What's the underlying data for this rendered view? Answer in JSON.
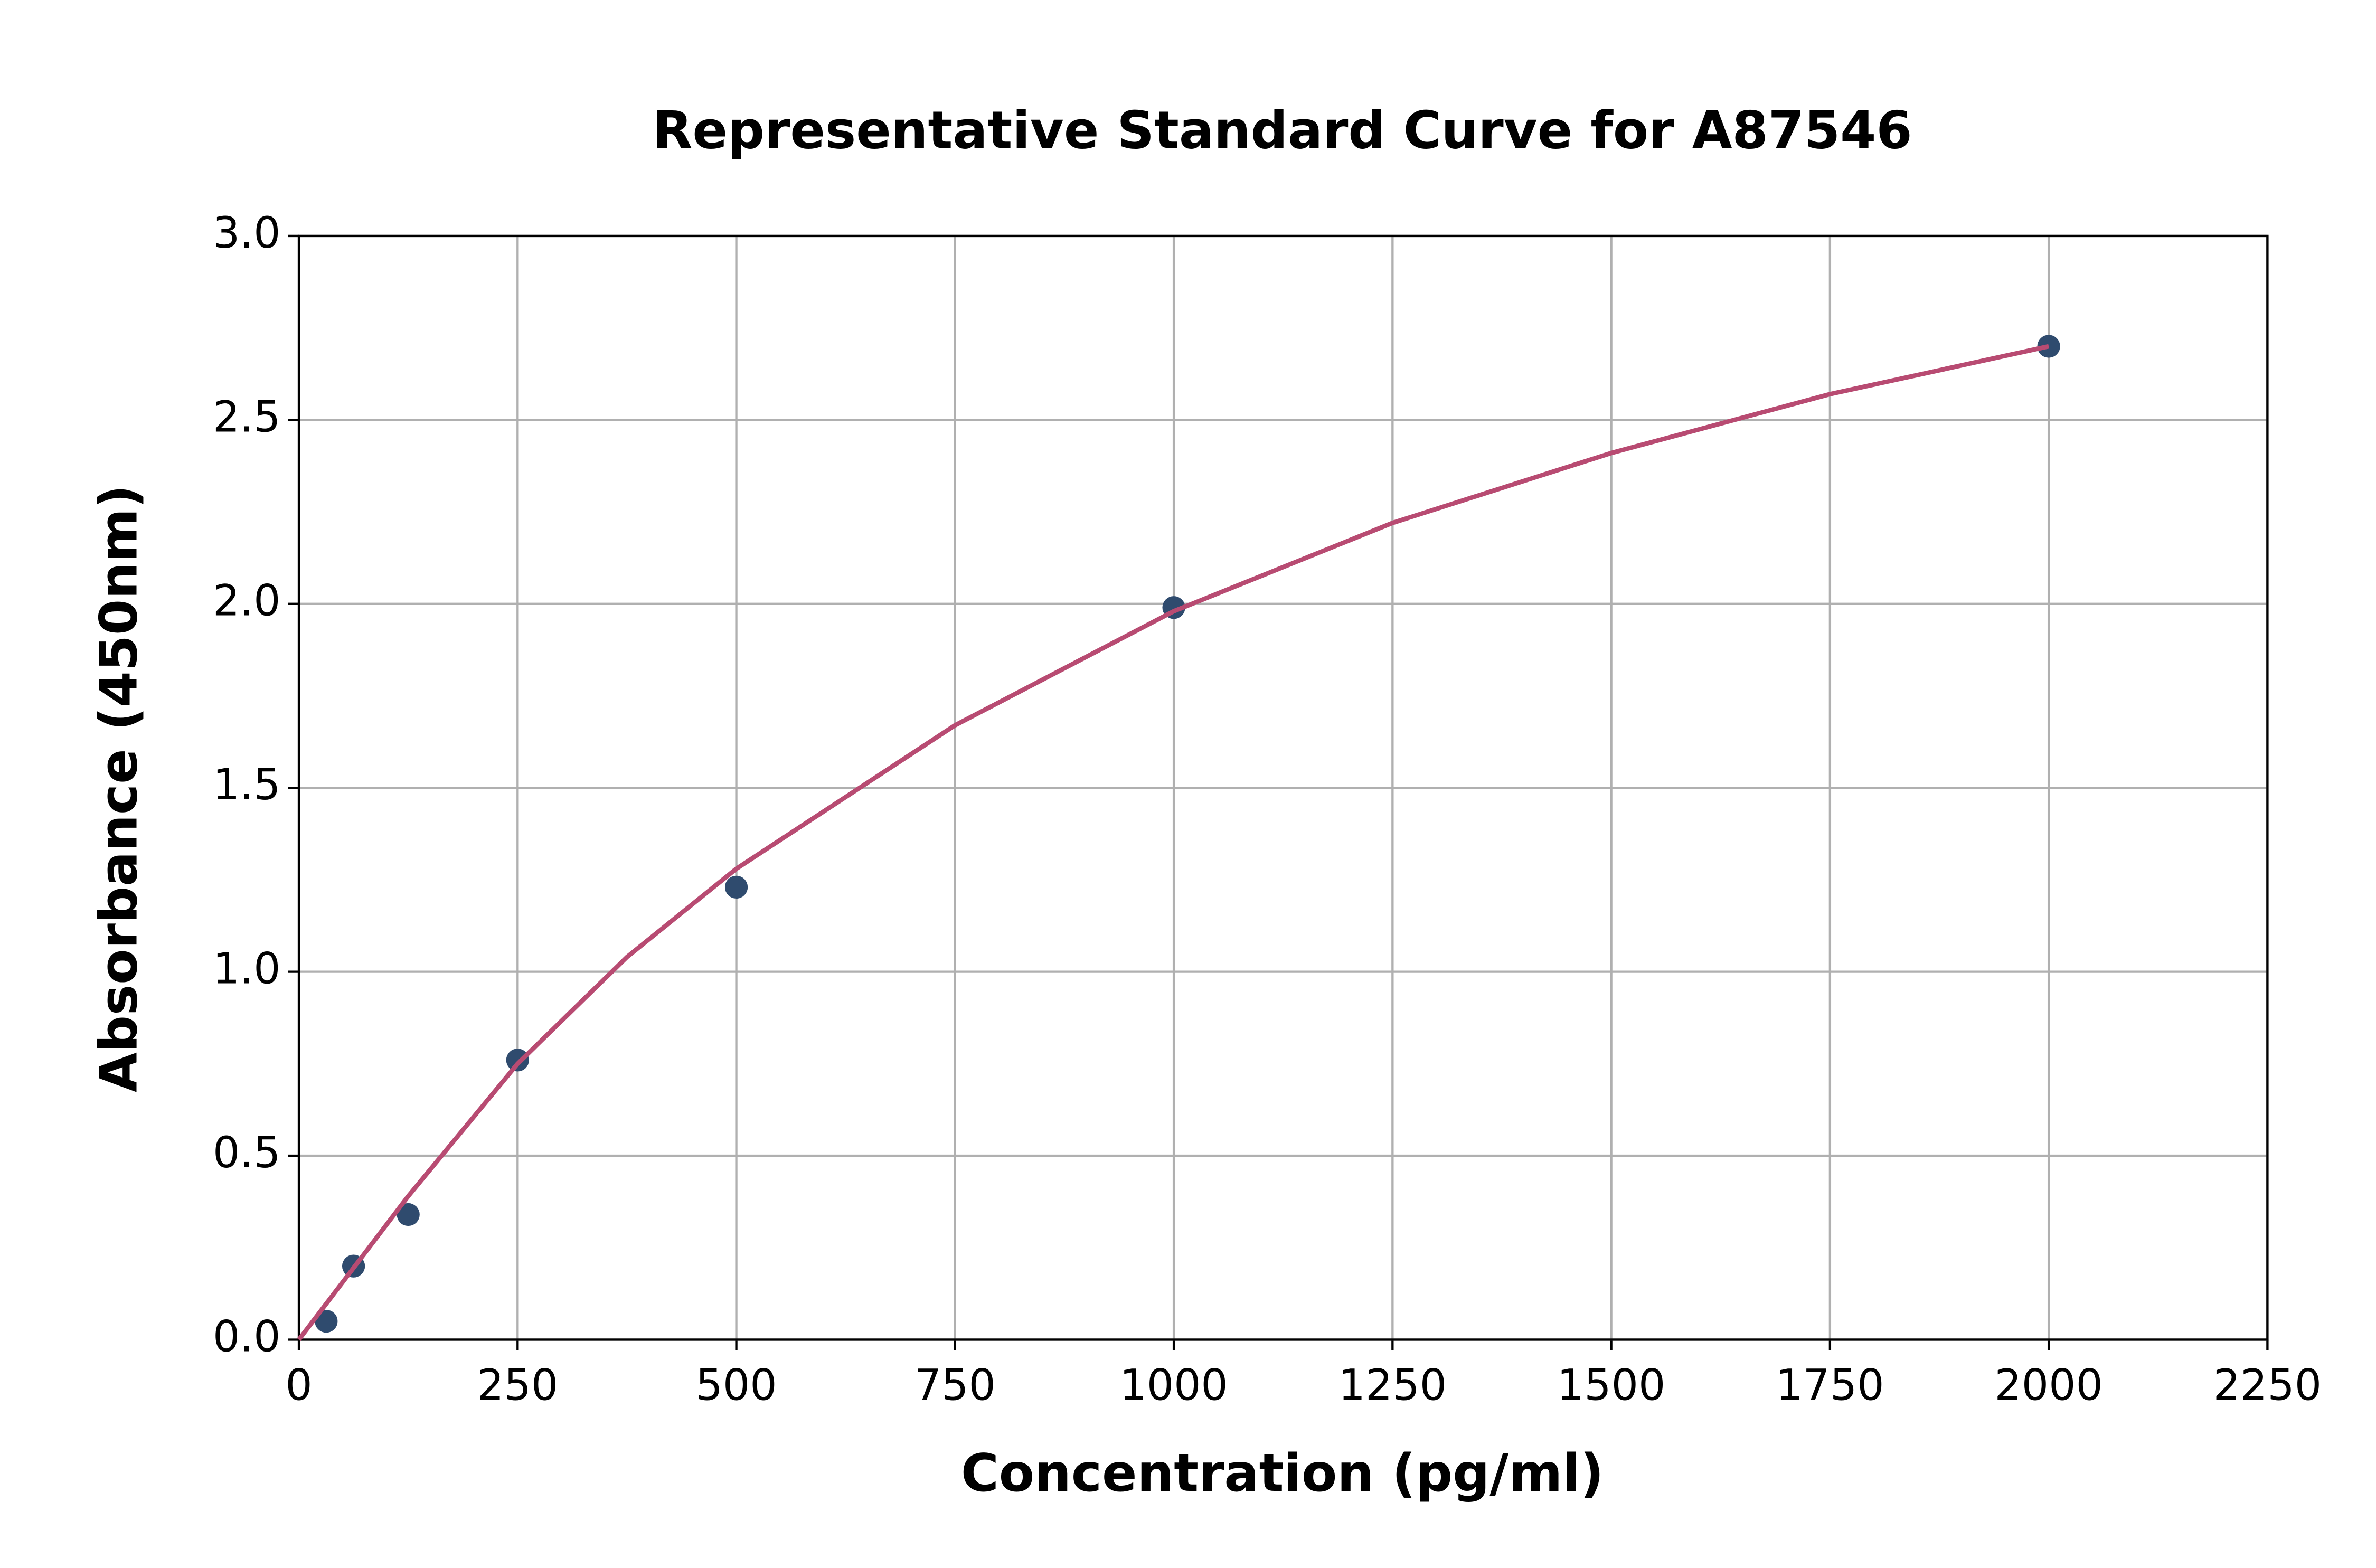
{
  "chart_data": {
    "type": "scatter",
    "title": "Representative Standard Curve for A87546",
    "x_label": "Concentration (pg/ml)",
    "y_label": "Absorbance (450nm)",
    "series": [
      {
        "type": "scatter",
        "color": "#2f4b6e",
        "x": [
          31.25,
          62.5,
          125,
          250,
          500,
          1000,
          2000
        ],
        "values": [
          0.05,
          0.2,
          0.34,
          0.76,
          1.23,
          1.99,
          2.7
        ]
      },
      {
        "type": "line",
        "color": "#b84b72",
        "x": [
          0,
          125,
          250,
          375,
          500,
          750,
          1000,
          1250,
          1500,
          1750,
          2000
        ],
        "values": [
          0,
          0.39,
          0.75,
          1.04,
          1.28,
          1.67,
          1.98,
          2.22,
          2.41,
          2.57,
          2.7
        ]
      }
    ],
    "xlim": [
      0,
      2250
    ],
    "xticks": [
      0,
      250,
      500,
      750,
      1000,
      1250,
      1500,
      1750,
      2000,
      2250
    ],
    "ylim": [
      0,
      3
    ],
    "yticks": [
      {
        "value": 0,
        "label": "0.0"
      },
      0.5,
      {
        "value": 1,
        "label": "1.0"
      },
      1.5,
      {
        "value": 2,
        "label": "2.0"
      },
      2.5,
      {
        "value": 3,
        "label": "3.0"
      }
    ],
    "grid": true
  }
}
